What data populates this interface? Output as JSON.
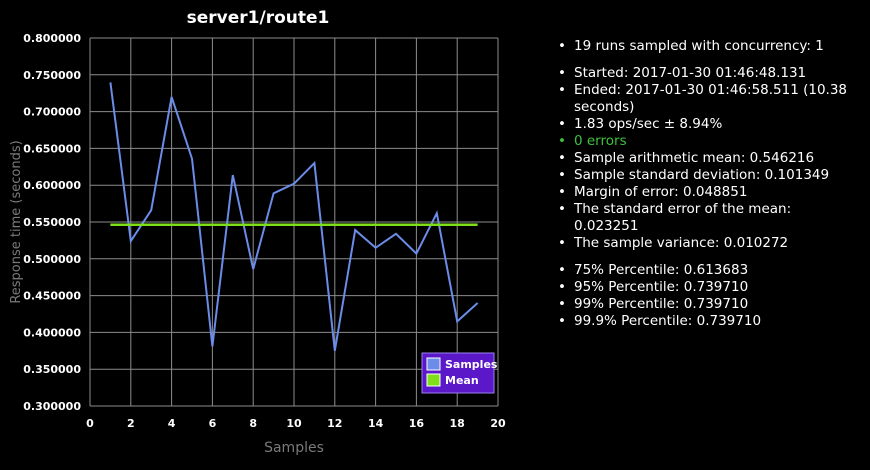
{
  "chart_data": {
    "type": "line",
    "title": "server1/route1",
    "xlabel": "Samples",
    "ylabel": "Response time (seconds)",
    "xlim": [
      0,
      20
    ],
    "ylim": [
      0.3,
      0.8
    ],
    "x_ticks": [
      "0",
      "2",
      "4",
      "6",
      "8",
      "10",
      "12",
      "14",
      "16",
      "18",
      "20"
    ],
    "y_ticks": [
      "0.300000",
      "0.350000",
      "0.400000",
      "0.450000",
      "0.500000",
      "0.550000",
      "0.600000",
      "0.650000",
      "0.700000",
      "0.750000",
      "0.800000"
    ],
    "grid": true,
    "legend_position": "bottom-right",
    "series": [
      {
        "name": "Samples",
        "color": "#6b8ce8",
        "x": [
          1,
          2,
          3,
          4,
          5,
          6,
          7,
          8,
          9,
          10,
          11,
          12,
          13,
          14,
          15,
          16,
          17,
          18,
          19
        ],
        "y": [
          0.73971,
          0.524,
          0.566,
          0.72,
          0.636,
          0.381,
          0.613683,
          0.486,
          0.589,
          0.602,
          0.63,
          0.375,
          0.539,
          0.515,
          0.534,
          0.507,
          0.562,
          0.415,
          0.44
        ]
      },
      {
        "name": "Mean",
        "color": "#7fe01a",
        "x": [
          1,
          19
        ],
        "y": [
          0.546216,
          0.546216
        ]
      }
    ]
  },
  "stats": {
    "runs": "19 runs sampled with concurrency: 1",
    "started": "Started: 2017-01-30 01:46:48.131",
    "ended": "Ended: 2017-01-30 01:46:58.511 (10.38 seconds)",
    "ops": "1.83 ops/sec ± 8.94%",
    "errors": "0 errors",
    "mean": "Sample arithmetic mean: 0.546216",
    "stddev": "Sample standard deviation: 0.101349",
    "margin": "Margin of error: 0.048851",
    "sem": "The standard error of the mean: 0.023251",
    "variance": "The sample variance: 0.010272",
    "p75": "75% Percentile: 0.613683",
    "p95": "95% Percentile: 0.739710",
    "p99": "99% Percentile: 0.739710",
    "p999": "99.9% Percentile: 0.739710"
  }
}
